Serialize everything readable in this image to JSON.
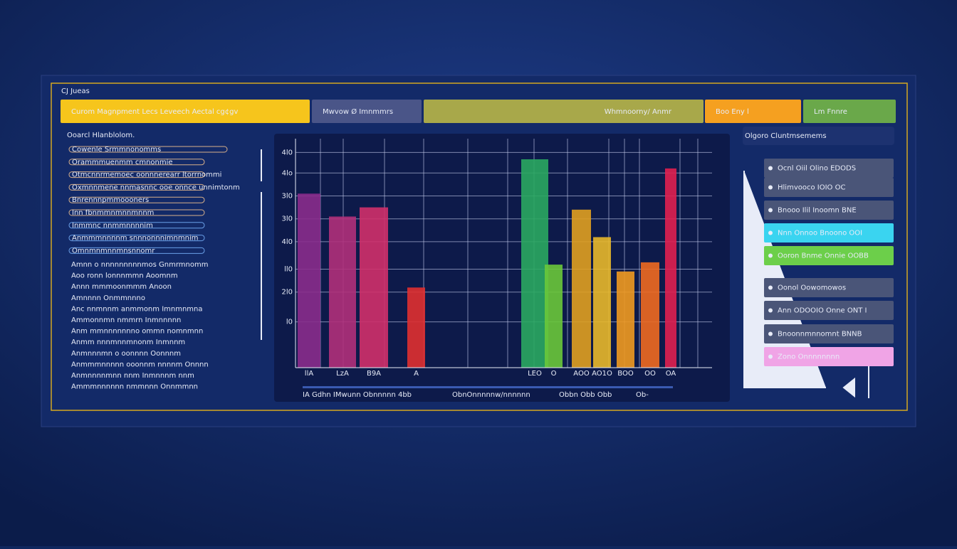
{
  "app_label": "CJ Jueas",
  "tabs": [
    "Curom Magnpment Lecs Leveech Aectal  cg¢gv",
    "Mwvow Ø Imnmmrs",
    "Whmnoorny/ Anmr",
    "Boo Eny l",
    "Lm Fnnre"
  ],
  "left_panel": {
    "title": "Ooarcl Hlanblolom.",
    "pills": [
      "Cowenle Srmmnonomms",
      "Orammmuenmm cmnonmie",
      "Otmcnnrmemoec oonnnerearr ltorrnommi",
      "Oxmnnmene nnmasnnc ooe onnce unnimtonm",
      "Bnrennnpmmoooners",
      "Inn fbnmmnmnnmnnm",
      "Inmmnc nnmmnnnnim",
      "Anmmmnnnnm snnnonnnimnmnim",
      "Omnmnmnnmnsnnomr"
    ],
    "items": [
      "Amnn o nnnnnnnnnmos Gnmrmnomm",
      "Aoo ronn lonnnmmn Aoomnm",
      "Annn mmmoonmmm Anoon",
      "Amnnnn Onmmnnno",
      "Anc nnmnnm anmmonm Imnmnmna",
      "Ammonnmn nmmrn Inmnnnnn",
      "Anm mmnnnnnnno ommn nomnmnn",
      "Anmm nnnmnnmnonm Inmnnm",
      "Anmnnnmn o oonnnn Oonnnm",
      "Anmmmnnnnn ooonnm nnnnm Onnnn",
      "Anmnnnnmnn nnm Inmnnnm nnm",
      "Ammmnnnnnn nmmnnn Onnmmnn"
    ]
  },
  "chart": {
    "type": "bar",
    "categories": [
      "llA",
      "LzA",
      "B9A",
      "A",
      "LEO",
      "O",
      "AOO",
      "AO1O",
      "BOO",
      "OO",
      "OA"
    ],
    "values": [
      76,
      66,
      70,
      35,
      91,
      45,
      69,
      57,
      42,
      46,
      87
    ],
    "colors": [
      "#8a2c8c",
      "#b0307a",
      "#d0306a",
      "#e03030",
      "#2aa860",
      "#6ac83a",
      "#e0a020",
      "#e8b82a",
      "#f09a20",
      "#f06a20",
      "#e02050"
    ],
    "ylim": [
      0,
      100
    ],
    "yticks": [
      {
        "value": 20,
        "label": "l0"
      },
      {
        "value": 33,
        "label": "2l0"
      },
      {
        "value": 43,
        "label": "ll0"
      },
      {
        "value": 55,
        "label": "4l0"
      },
      {
        "value": 65,
        "label": "3l0"
      },
      {
        "value": 75,
        "label": "3l0"
      },
      {
        "value": 85,
        "label": "4lo"
      },
      {
        "value": 94,
        "label": "4l0"
      }
    ],
    "grid": true
  },
  "legend_row": [
    "IA Gdhn IMwunn Obnnnnn 4bb",
    "ObnOnnnnnw/nnnnnn",
    "Obbn Obb Obb",
    "Ob-"
  ],
  "right_panel": {
    "title": "Olgoro Cluntmsemems",
    "items": [
      "Ocnl Oiil Olino  EDODS",
      "Hlimvooco IOIO OC",
      "Bnooo Ilil Inoomn BNE",
      "Nnn Onnoo Bnoono OOI",
      "Ooron Bnme Onnie OOBB",
      "Oonol Oowomowos",
      "Ann ODOOIO Onne  ONT I",
      "Bnoonnmnnomnt BNNB",
      "Zono Onnnnnnnn"
    ],
    "colors": [
      "#4a5578",
      "#4a5578",
      "#4a5578",
      "#3ad4f0",
      "#6ccf4a",
      "#4a5578",
      "#4a5578",
      "#4a5578",
      "#f0a4e6"
    ]
  }
}
